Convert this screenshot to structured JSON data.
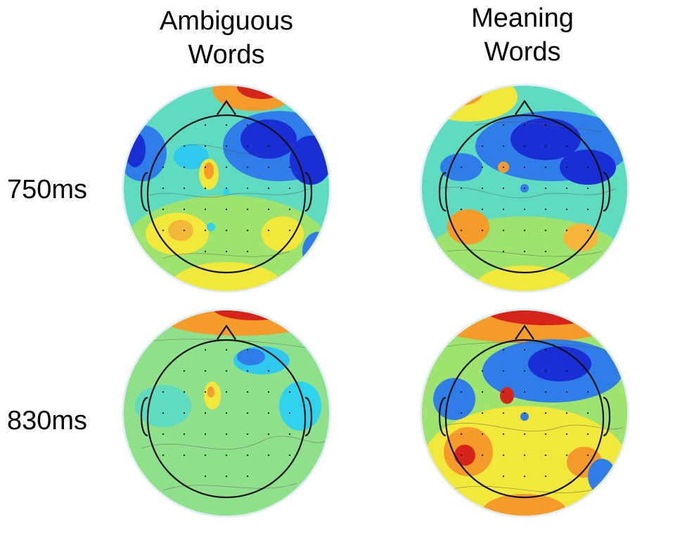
{
  "column_titles": [
    {
      "line1": "Ambiguous",
      "line2": "Words"
    },
    {
      "line1": "Meaning",
      "line2": "Words"
    }
  ],
  "row_labels": [
    "750ms",
    "830ms"
  ],
  "colors": {
    "halo": "#e2edf7",
    "deep_blue": "#1a2ed6",
    "blue": "#2f7de8",
    "cyan": "#2fd3ee",
    "teal": "#3fd9c8",
    "green": "#8de07a",
    "yellow": "#f2e83a",
    "orange": "#f59b2a",
    "red": "#d6241b",
    "outline": "#111111"
  }
}
